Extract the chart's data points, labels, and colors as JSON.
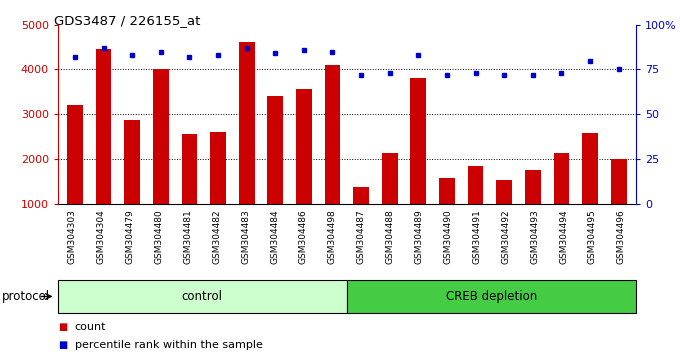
{
  "title": "GDS3487 / 226155_at",
  "samples": [
    "GSM304303",
    "GSM304304",
    "GSM304479",
    "GSM304480",
    "GSM304481",
    "GSM304482",
    "GSM304483",
    "GSM304484",
    "GSM304486",
    "GSM304498",
    "GSM304487",
    "GSM304488",
    "GSM304489",
    "GSM304490",
    "GSM304491",
    "GSM304492",
    "GSM304493",
    "GSM304494",
    "GSM304495",
    "GSM304496"
  ],
  "counts": [
    3200,
    4450,
    2880,
    4000,
    2560,
    2600,
    4620,
    3400,
    3560,
    4100,
    1380,
    2140,
    3800,
    1580,
    1830,
    1520,
    1760,
    2140,
    2580,
    2000
  ],
  "percentiles": [
    82,
    87,
    83,
    85,
    82,
    83,
    87,
    84,
    86,
    85,
    72,
    73,
    83,
    72,
    73,
    72,
    72,
    73,
    80,
    75
  ],
  "bar_color": "#cc0000",
  "dot_color": "#0000cc",
  "control_count": 10,
  "control_label": "control",
  "creb_label": "CREB depletion",
  "control_bg": "#ccffcc",
  "creb_bg": "#44cc44",
  "ylim_left": [
    1000,
    5000
  ],
  "ylim_right": [
    0,
    100
  ],
  "yticks_left": [
    1000,
    2000,
    3000,
    4000,
    5000
  ],
  "yticks_right": [
    0,
    25,
    50,
    75,
    100
  ],
  "ytick_labels_right": [
    "0",
    "25",
    "50",
    "75",
    "100%"
  ],
  "legend_count_label": "count",
  "legend_pct_label": "percentile rank within the sample",
  "protocol_label": "protocol",
  "background_color": "#ffffff",
  "xlabel_bg": "#cccccc",
  "font_size": 8,
  "bar_width": 0.55
}
